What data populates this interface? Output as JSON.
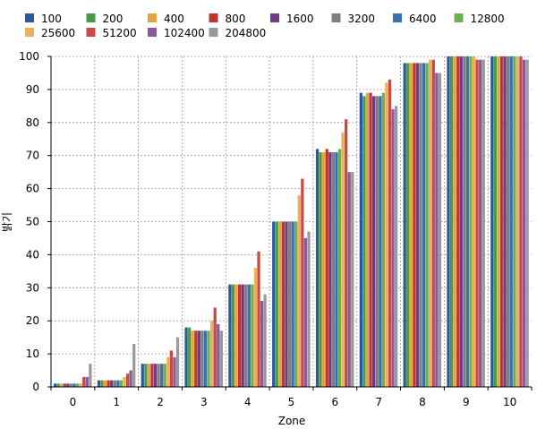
{
  "chart_data": {
    "type": "bar",
    "xlabel": "Zone",
    "ylabel": "밝기",
    "ylim": [
      0,
      100
    ],
    "yticks": [
      0,
      10,
      20,
      30,
      40,
      50,
      60,
      70,
      80,
      90,
      100
    ],
    "grid": true,
    "legend_position": "top",
    "categories": [
      "0",
      "1",
      "2",
      "3",
      "4",
      "5",
      "6",
      "7",
      "8",
      "9",
      "10"
    ],
    "series": [
      {
        "name": "100",
        "color": "#2a5a9a",
        "values": [
          1,
          2,
          7,
          18,
          31,
          50,
          72,
          89,
          98,
          100,
          100
        ]
      },
      {
        "name": "200",
        "color": "#4c9a46",
        "values": [
          1,
          2,
          7,
          18,
          31,
          50,
          71,
          88,
          98,
          100,
          100
        ]
      },
      {
        "name": "400",
        "color": "#e7a33e",
        "values": [
          1,
          2,
          7,
          17,
          31,
          50,
          71,
          89,
          98,
          100,
          100
        ]
      },
      {
        "name": "800",
        "color": "#c0352f",
        "values": [
          1,
          2,
          7,
          17,
          31,
          50,
          72,
          89,
          98,
          100,
          100
        ]
      },
      {
        "name": "1600",
        "color": "#6e3c84",
        "values": [
          1,
          2,
          7,
          17,
          31,
          50,
          71,
          88,
          98,
          100,
          100
        ]
      },
      {
        "name": "3200",
        "color": "#7f7f7f",
        "values": [
          1,
          2,
          7,
          17,
          31,
          50,
          71,
          88,
          98,
          100,
          100
        ]
      },
      {
        "name": "6400",
        "color": "#3a6fb0",
        "values": [
          1,
          2,
          7,
          17,
          31,
          50,
          71,
          88,
          98,
          100,
          100
        ]
      },
      {
        "name": "12800",
        "color": "#6db04f",
        "values": [
          1,
          2,
          7,
          17,
          31,
          50,
          72,
          89,
          98,
          100,
          100
        ]
      },
      {
        "name": "25600",
        "color": "#f0ad5c",
        "values": [
          1,
          3,
          9,
          20,
          36,
          58,
          77,
          92,
          99,
          100,
          100
        ]
      },
      {
        "name": "51200",
        "color": "#c84a45",
        "values": [
          3,
          4,
          11,
          24,
          41,
          63,
          81,
          93,
          99,
          99,
          100
        ]
      },
      {
        "name": "102400",
        "color": "#8a5a9e",
        "values": [
          3,
          5,
          9,
          19,
          26,
          45,
          65,
          84,
          95,
          99,
          99
        ]
      },
      {
        "name": "204800",
        "color": "#999999",
        "values": [
          7,
          13,
          15,
          17,
          28,
          47,
          65,
          85,
          95,
          99,
          99
        ]
      }
    ]
  }
}
